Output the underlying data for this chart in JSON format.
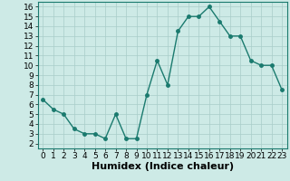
{
  "x": [
    0,
    1,
    2,
    3,
    4,
    5,
    6,
    7,
    8,
    9,
    10,
    11,
    12,
    13,
    14,
    15,
    16,
    17,
    18,
    19,
    20,
    21,
    22,
    23
  ],
  "y": [
    6.5,
    5.5,
    5.0,
    3.5,
    3.0,
    3.0,
    2.5,
    5.0,
    2.5,
    2.5,
    7.0,
    10.5,
    8.0,
    13.5,
    15.0,
    15.0,
    16.0,
    14.5,
    13.0,
    13.0,
    10.5,
    10.0,
    10.0,
    7.5
  ],
  "line_color": "#1a7a6e",
  "marker_color": "#1a7a6e",
  "bg_color": "#cdeae6",
  "grid_color": "#a8cdc9",
  "xlabel": "Humidex (Indice chaleur)",
  "xlim": [
    -0.5,
    23.5
  ],
  "ylim": [
    1.5,
    16.5
  ],
  "xticks": [
    0,
    1,
    2,
    3,
    4,
    5,
    6,
    7,
    8,
    9,
    10,
    11,
    12,
    13,
    14,
    15,
    16,
    17,
    18,
    19,
    20,
    21,
    22,
    23
  ],
  "yticks": [
    2,
    3,
    4,
    5,
    6,
    7,
    8,
    9,
    10,
    11,
    12,
    13,
    14,
    15,
    16
  ],
  "xlabel_fontsize": 8,
  "tick_fontsize": 6.5,
  "linewidth": 1.0,
  "markersize": 2.5
}
